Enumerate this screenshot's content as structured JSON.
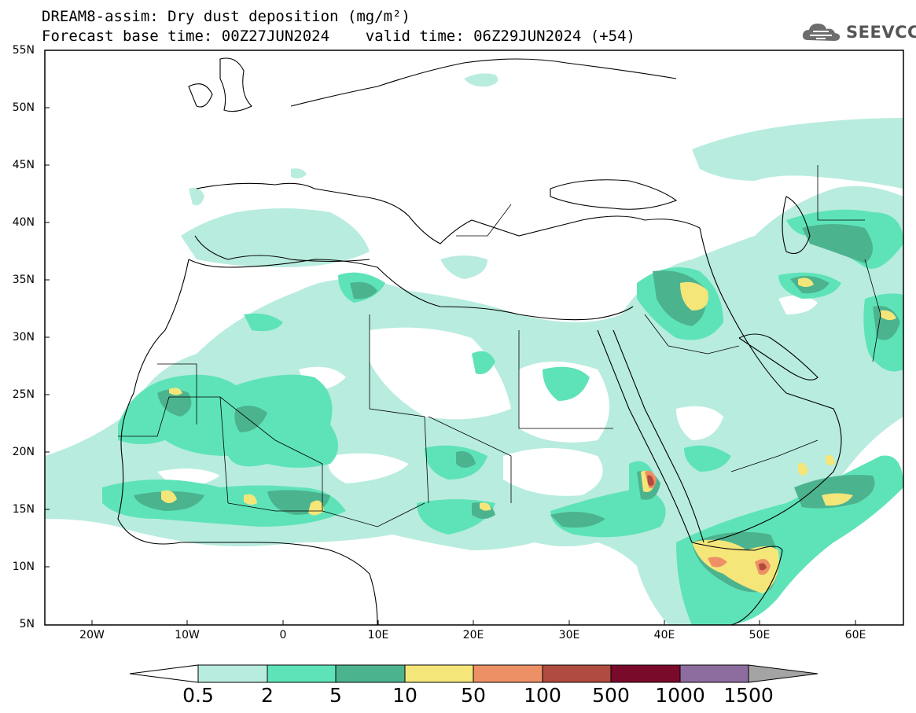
{
  "title": {
    "line1": "DREAM8-assim: Dry dust deposition (mg/m²)",
    "line2": "Forecast base time: 00Z27JUN2024    valid time: 06Z29JUN2024 (+54)"
  },
  "logo": {
    "text": "SEEVCCC",
    "icon": "cloud-icon"
  },
  "map": {
    "lat_labels": [
      "55N",
      "50N",
      "45N",
      "40N",
      "35N",
      "30N",
      "25N",
      "20N",
      "15N",
      "10N",
      "5N"
    ],
    "lon_labels": [
      "20W",
      "10W",
      "0",
      "10E",
      "20E",
      "30E",
      "40E",
      "50E",
      "60E"
    ],
    "lon_range": [
      -25,
      65
    ],
    "lat_range": [
      5,
      55
    ]
  },
  "colorbar": {
    "labels": [
      "0.5",
      "2",
      "5",
      "10",
      "50",
      "100",
      "500",
      "1000",
      "1500"
    ],
    "colors": [
      "#b8ecdf",
      "#5ee3b8",
      "#4cb38f",
      "#f5e67a",
      "#ee9066",
      "#b04b3f",
      "#7a0a2a",
      "#8d6d9f"
    ],
    "under_color": "#ffffff",
    "over_color": "#a4a4a4"
  }
}
